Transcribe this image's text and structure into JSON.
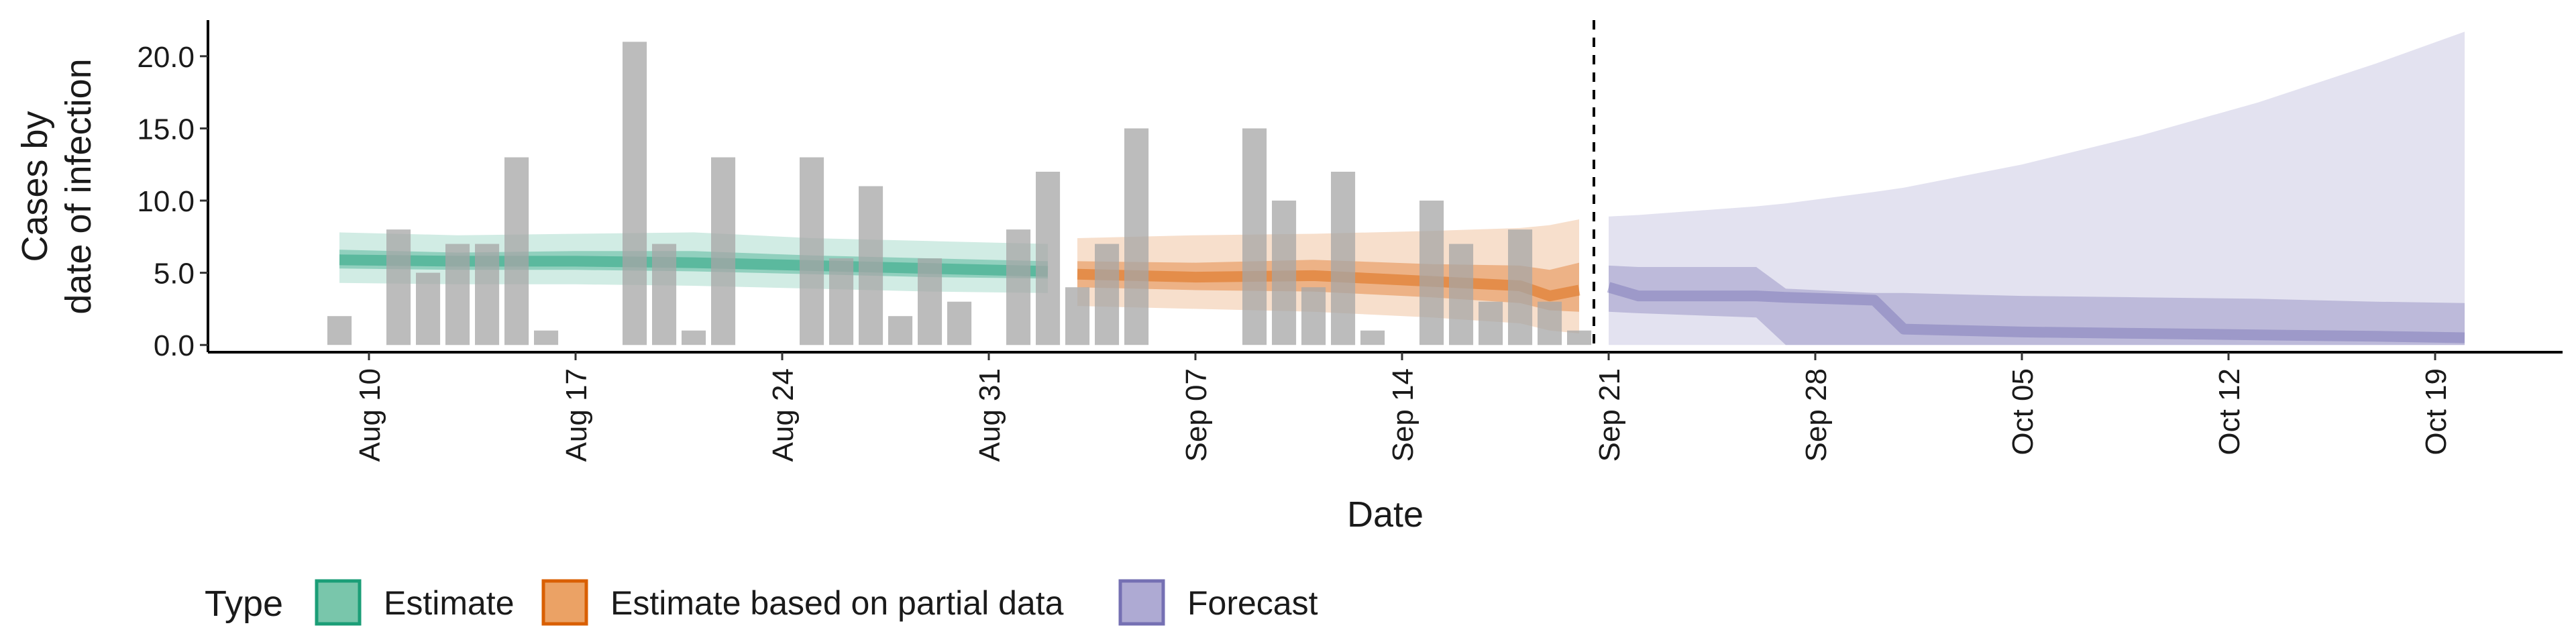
{
  "chart_data": {
    "type": "bar",
    "xlabel": "Date",
    "ylabel_lines": [
      "Cases by",
      "date of infection"
    ],
    "ylim": [
      -0.5,
      22.5
    ],
    "grid": false,
    "legend_position": "bottom-left",
    "y_ticks": [
      {
        "value": 0,
        "label": "0.0"
      },
      {
        "value": 5,
        "label": "5.0"
      },
      {
        "value": 10,
        "label": "10.0"
      },
      {
        "value": 15,
        "label": "15.0"
      },
      {
        "value": 20,
        "label": "20.0"
      }
    ],
    "x_ticks": [
      {
        "date": "2020-08-10",
        "label": "Aug 10"
      },
      {
        "date": "2020-08-17",
        "label": "Aug 17"
      },
      {
        "date": "2020-08-24",
        "label": "Aug 24"
      },
      {
        "date": "2020-08-31",
        "label": "Aug 31"
      },
      {
        "date": "2020-09-07",
        "label": "Sep 07"
      },
      {
        "date": "2020-09-14",
        "label": "Sep 14"
      },
      {
        "date": "2020-09-21",
        "label": "Sep 21"
      },
      {
        "date": "2020-09-28",
        "label": "Sep 28"
      },
      {
        "date": "2020-10-05",
        "label": "Oct 05"
      },
      {
        "date": "2020-10-12",
        "label": "Oct 12"
      },
      {
        "date": "2020-10-19",
        "label": "Oct 19"
      }
    ],
    "forecast_start": "2020-09-20",
    "observed_cases": [
      {
        "date": "2020-08-09",
        "value": 2
      },
      {
        "date": "2020-08-11",
        "value": 8
      },
      {
        "date": "2020-08-12",
        "value": 5
      },
      {
        "date": "2020-08-13",
        "value": 7
      },
      {
        "date": "2020-08-14",
        "value": 7
      },
      {
        "date": "2020-08-15",
        "value": 13
      },
      {
        "date": "2020-08-16",
        "value": 1
      },
      {
        "date": "2020-08-19",
        "value": 21
      },
      {
        "date": "2020-08-20",
        "value": 7
      },
      {
        "date": "2020-08-21",
        "value": 1
      },
      {
        "date": "2020-08-22",
        "value": 13
      },
      {
        "date": "2020-08-25",
        "value": 13
      },
      {
        "date": "2020-08-26",
        "value": 6
      },
      {
        "date": "2020-08-27",
        "value": 11
      },
      {
        "date": "2020-08-28",
        "value": 2
      },
      {
        "date": "2020-08-29",
        "value": 6
      },
      {
        "date": "2020-08-30",
        "value": 3
      },
      {
        "date": "2020-09-01",
        "value": 8
      },
      {
        "date": "2020-09-02",
        "value": 12
      },
      {
        "date": "2020-09-03",
        "value": 4
      },
      {
        "date": "2020-09-04",
        "value": 7
      },
      {
        "date": "2020-09-05",
        "value": 15
      },
      {
        "date": "2020-09-09",
        "value": 15
      },
      {
        "date": "2020-09-10",
        "value": 10
      },
      {
        "date": "2020-09-11",
        "value": 4
      },
      {
        "date": "2020-09-12",
        "value": 12
      },
      {
        "date": "2020-09-13",
        "value": 1
      },
      {
        "date": "2020-09-15",
        "value": 10
      },
      {
        "date": "2020-09-16",
        "value": 7
      },
      {
        "date": "2020-09-17",
        "value": 3
      },
      {
        "date": "2020-09-18",
        "value": 8
      },
      {
        "date": "2020-09-19",
        "value": 3
      },
      {
        "date": "2020-09-20",
        "value": 1
      }
    ],
    "series": [
      {
        "name": "Estimate",
        "color": "#1b9e77",
        "points": [
          {
            "date": "2020-08-09",
            "lower90": 4.3,
            "upper90": 7.8,
            "lower50": 5.3,
            "upper50": 6.6,
            "median": 5.9
          },
          {
            "date": "2020-08-13",
            "lower90": 4.2,
            "upper90": 7.6,
            "lower50": 5.2,
            "upper50": 6.4,
            "median": 5.8
          },
          {
            "date": "2020-08-17",
            "lower90": 4.2,
            "upper90": 7.7,
            "lower50": 5.2,
            "upper50": 6.5,
            "median": 5.8
          },
          {
            "date": "2020-08-21",
            "lower90": 4.1,
            "upper90": 7.8,
            "lower50": 5.1,
            "upper50": 6.5,
            "median": 5.7
          },
          {
            "date": "2020-08-25",
            "lower90": 3.9,
            "upper90": 7.4,
            "lower50": 4.9,
            "upper50": 6.2,
            "median": 5.5
          },
          {
            "date": "2020-08-29",
            "lower90": 3.7,
            "upper90": 7.2,
            "lower50": 4.7,
            "upper50": 6.0,
            "median": 5.3
          },
          {
            "date": "2020-09-02",
            "lower90": 3.6,
            "upper90": 7.0,
            "lower50": 4.6,
            "upper50": 5.8,
            "median": 5.1
          }
        ]
      },
      {
        "name": "Estimate based on partial data",
        "color": "#d95f02",
        "points": [
          {
            "date": "2020-09-03",
            "lower90": 2.7,
            "upper90": 7.4,
            "lower50": 4.0,
            "upper50": 5.8,
            "median": 4.9
          },
          {
            "date": "2020-09-07",
            "lower90": 2.5,
            "upper90": 7.6,
            "lower50": 3.8,
            "upper50": 5.7,
            "median": 4.7
          },
          {
            "date": "2020-09-11",
            "lower90": 2.3,
            "upper90": 7.7,
            "lower50": 3.7,
            "upper50": 5.9,
            "median": 4.8
          },
          {
            "date": "2020-09-15",
            "lower90": 1.9,
            "upper90": 7.9,
            "lower50": 3.3,
            "upper50": 5.6,
            "median": 4.4
          },
          {
            "date": "2020-09-18",
            "lower90": 1.5,
            "upper90": 8.1,
            "lower50": 2.9,
            "upper50": 5.5,
            "median": 4.1
          },
          {
            "date": "2020-09-19",
            "lower90": 1.0,
            "upper90": 8.3,
            "lower50": 2.4,
            "upper50": 5.2,
            "median": 3.4
          },
          {
            "date": "2020-09-20",
            "lower90": 0.8,
            "upper90": 8.7,
            "lower50": 2.3,
            "upper50": 5.7,
            "median": 3.8
          }
        ]
      },
      {
        "name": "Forecast",
        "color": "#7570b3",
        "points": [
          {
            "date": "2020-09-21",
            "lower90": 0.0,
            "upper90": 8.9,
            "lower50": 2.3,
            "upper50": 5.5,
            "median": 4.0
          },
          {
            "date": "2020-09-22",
            "lower90": 0.0,
            "upper90": 9.0,
            "lower50": 2.2,
            "upper50": 5.4,
            "median": 3.4
          },
          {
            "date": "2020-09-26",
            "lower90": 0.0,
            "upper90": 9.6,
            "lower50": 1.9,
            "upper50": 5.4,
            "median": 3.4
          },
          {
            "date": "2020-09-27",
            "lower90": 0.0,
            "upper90": 9.8,
            "lower50": 0.0,
            "upper50": 3.9,
            "median": 3.3
          },
          {
            "date": "2020-09-30",
            "lower90": 0.0,
            "upper90": 10.6,
            "lower50": 0.0,
            "upper50": 3.6,
            "median": 3.1
          },
          {
            "date": "2020-10-01",
            "lower90": 0.0,
            "upper90": 10.9,
            "lower50": 0.0,
            "upper50": 3.6,
            "median": 1.1
          },
          {
            "date": "2020-10-05",
            "lower90": 0.0,
            "upper90": 12.5,
            "lower50": 0.0,
            "upper50": 3.4,
            "median": 0.9
          },
          {
            "date": "2020-10-09",
            "lower90": 0.0,
            "upper90": 14.5,
            "lower50": 0.0,
            "upper50": 3.3,
            "median": 0.8
          },
          {
            "date": "2020-10-13",
            "lower90": 0.0,
            "upper90": 16.8,
            "lower50": 0.0,
            "upper50": 3.2,
            "median": 0.7
          },
          {
            "date": "2020-10-17",
            "lower90": 0.0,
            "upper90": 19.5,
            "lower50": 0.0,
            "upper50": 3.0,
            "median": 0.6
          },
          {
            "date": "2020-10-20",
            "lower90": 0.0,
            "upper90": 21.7,
            "lower50": 0.0,
            "upper50": 2.9,
            "median": 0.5
          }
        ]
      }
    ],
    "legend": {
      "title": "Type",
      "items": [
        {
          "label": "Estimate",
          "fill": "#79c6ab",
          "stroke": "#1b9e77"
        },
        {
          "label": "Estimate based on partial data",
          "fill": "#eba265",
          "stroke": "#d95f02"
        },
        {
          "label": "Forecast",
          "fill": "#aeaad3",
          "stroke": "#7570b3"
        }
      ]
    }
  }
}
